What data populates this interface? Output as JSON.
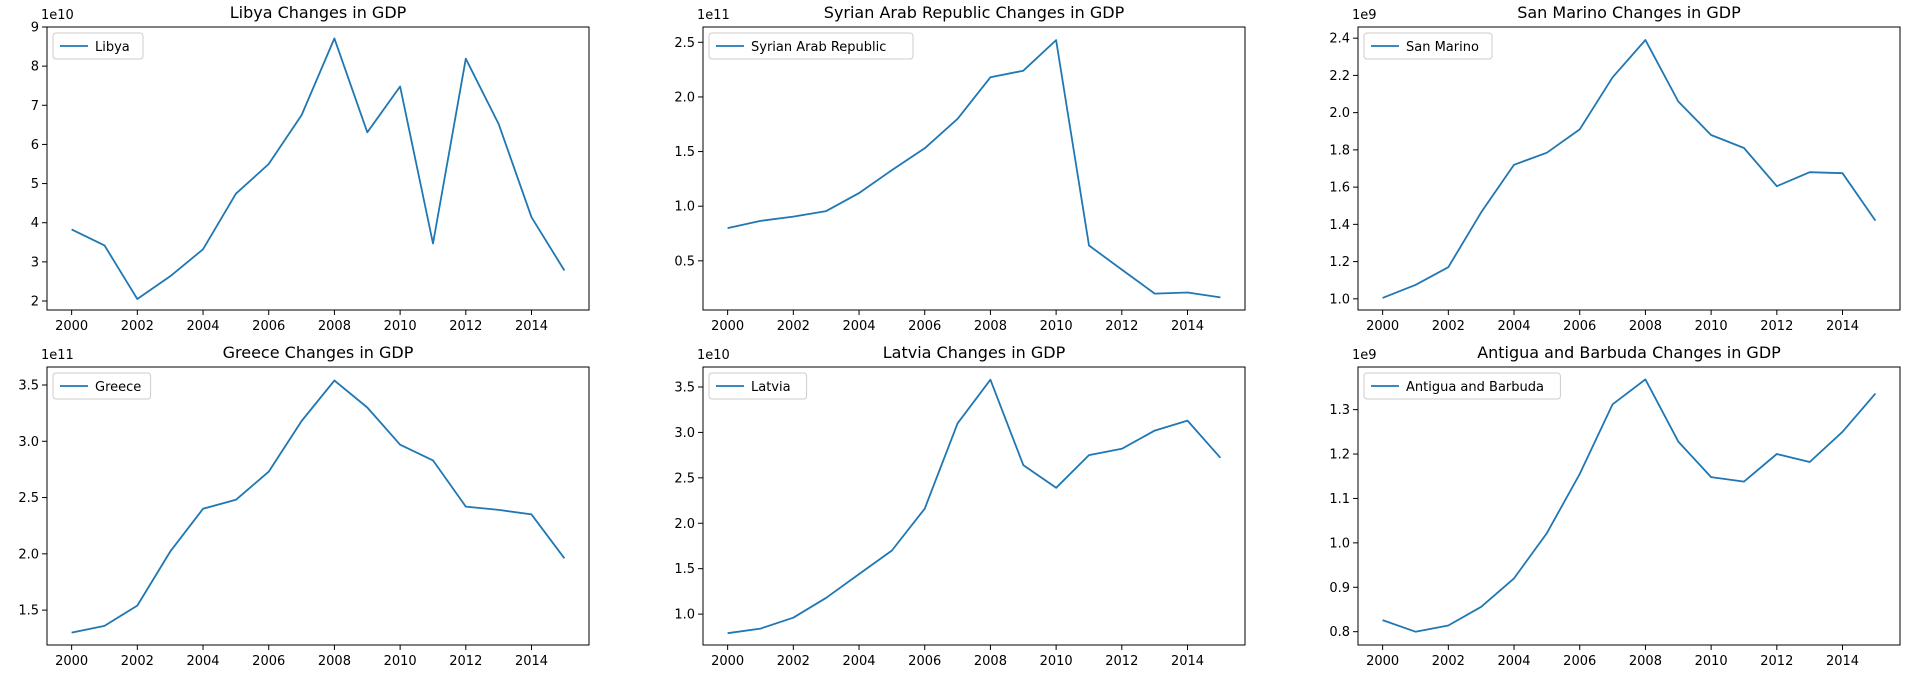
{
  "chart_data": [
    {
      "type": "line",
      "title": "Libya Changes in GDP",
      "xlabel": "",
      "ylabel": "",
      "x": [
        2000,
        2001,
        2002,
        2003,
        2004,
        2005,
        2006,
        2007,
        2008,
        2009,
        2010,
        2011,
        2012,
        2013,
        2014,
        2015
      ],
      "series": [
        {
          "name": "Libya",
          "values": [
            38300000000.0,
            34200000000.0,
            20500000000.0,
            26300000000.0,
            33200000000.0,
            47400000000.0,
            55000000000.0,
            67500000000.0,
            87100000000.0,
            63100000000.0,
            74800000000.0,
            34700000000.0,
            81900000000.0,
            65200000000.0,
            41400000000.0,
            27800000000.0
          ]
        }
      ],
      "xlim": [
        1999.25,
        2015.75
      ],
      "ylim": [
        17700000000.0,
        90000000000.0
      ],
      "xticks": [
        2000,
        2002,
        2004,
        2006,
        2008,
        2010,
        2012,
        2014
      ],
      "yticks": [
        2,
        3,
        4,
        5,
        6,
        7,
        8,
        9
      ],
      "offset_label": "1e10",
      "legend": "upper left",
      "grid": false
    },
    {
      "type": "line",
      "title": "Syrian Arab Republic Changes in GDP",
      "xlabel": "",
      "ylabel": "",
      "x": [
        2000,
        2001,
        2002,
        2003,
        2004,
        2005,
        2006,
        2007,
        2008,
        2009,
        2010,
        2011,
        2012,
        2013,
        2014,
        2015
      ],
      "series": [
        {
          "name": "Syrian Arab Republic",
          "values": [
            80000000000.0,
            86500000000.0,
            90500000000.0,
            95500000000.0,
            112000000000.0,
            133000000000.0,
            153000000000.0,
            180000000000.0,
            218000000000.0,
            224000000000.0,
            252000000000.0,
            64000000000.0,
            42000000000.0,
            20000000000.0,
            21000000000.0,
            16500000000.0
          ]
        }
      ],
      "xlim": [
        1999.25,
        2015.75
      ],
      "ylim": [
        5000000000.0,
        264000000000.0
      ],
      "xticks": [
        2000,
        2002,
        2004,
        2006,
        2008,
        2010,
        2012,
        2014
      ],
      "yticks": [
        "0.5",
        "1.0",
        "1.5",
        "2.0",
        "2.5"
      ],
      "offset_label": "1e11",
      "legend": "upper left",
      "grid": false
    },
    {
      "type": "line",
      "title": "San Marino Changes in GDP",
      "xlabel": "",
      "ylabel": "",
      "x": [
        2000,
        2001,
        2002,
        2003,
        2004,
        2005,
        2006,
        2007,
        2008,
        2009,
        2010,
        2011,
        2012,
        2013,
        2014,
        2015
      ],
      "series": [
        {
          "name": "San Marino",
          "values": [
            1005000000.0,
            1075000000.0,
            1170000000.0,
            1465000000.0,
            1720000000.0,
            1785000000.0,
            1910000000.0,
            2190000000.0,
            2390000000.0,
            2060000000.0,
            1880000000.0,
            1810000000.0,
            1605000000.0,
            1680000000.0,
            1675000000.0,
            1420000000.0
          ]
        }
      ],
      "xlim": [
        1999.25,
        2015.75
      ],
      "ylim": [
        940000000.0,
        2460000000.0
      ],
      "xticks": [
        2000,
        2002,
        2004,
        2006,
        2008,
        2010,
        2012,
        2014
      ],
      "yticks": [
        "1.0",
        "1.2",
        "1.4",
        "1.6",
        "1.8",
        "2.0",
        "2.2",
        "2.4"
      ],
      "offset_label": "1e9",
      "legend": "upper left",
      "grid": false
    },
    {
      "type": "line",
      "title": "Greece Changes in GDP",
      "xlabel": "",
      "ylabel": "",
      "x": [
        2000,
        2001,
        2002,
        2003,
        2004,
        2005,
        2006,
        2007,
        2008,
        2009,
        2010,
        2011,
        2012,
        2013,
        2014,
        2015
      ],
      "series": [
        {
          "name": "Greece",
          "values": [
            130000000000.0,
            136000000000.0,
            154000000000.0,
            202000000000.0,
            240000000000.0,
            248000000000.0,
            273000000000.0,
            318000000000.0,
            354000000000.0,
            330000000000.0,
            297000000000.0,
            283000000000.0,
            242000000000.0,
            239000000000.0,
            235000000000.0,
            196000000000.0
          ]
        }
      ],
      "xlim": [
        1999.25,
        2015.75
      ],
      "ylim": [
        119000000000.0,
        366000000000.0
      ],
      "xticks": [
        2000,
        2002,
        2004,
        2006,
        2008,
        2010,
        2012,
        2014
      ],
      "yticks": [
        "1.5",
        "2.0",
        "2.5",
        "3.0",
        "3.5"
      ],
      "offset_label": "1e11",
      "legend": "upper left",
      "grid": false
    },
    {
      "type": "line",
      "title": "Latvia Changes in GDP",
      "xlabel": "",
      "ylabel": "",
      "x": [
        2000,
        2001,
        2002,
        2003,
        2004,
        2005,
        2006,
        2007,
        2008,
        2009,
        2010,
        2011,
        2012,
        2013,
        2014,
        2015
      ],
      "series": [
        {
          "name": "Latvia",
          "values": [
            7900000000.0,
            8400000000.0,
            9600000000.0,
            11800000000.0,
            14400000000.0,
            17000000000.0,
            21600000000.0,
            31000000000.0,
            35800000000.0,
            26400000000.0,
            23900000000.0,
            27500000000.0,
            28200000000.0,
            30200000000.0,
            31300000000.0,
            27200000000.0
          ]
        }
      ],
      "xlim": [
        1999.25,
        2015.75
      ],
      "ylim": [
        6600000000.0,
        37200000000.0
      ],
      "xticks": [
        2000,
        2002,
        2004,
        2006,
        2008,
        2010,
        2012,
        2014
      ],
      "yticks": [
        "1.0",
        "1.5",
        "2.0",
        "2.5",
        "3.0",
        "3.5"
      ],
      "offset_label": "1e10",
      "legend": "upper left",
      "grid": false
    },
    {
      "type": "line",
      "title": "Antigua and Barbuda Changes in GDP",
      "xlabel": "",
      "ylabel": "",
      "x": [
        2000,
        2001,
        2002,
        2003,
        2004,
        2005,
        2006,
        2007,
        2008,
        2009,
        2010,
        2011,
        2012,
        2013,
        2014,
        2015
      ],
      "series": [
        {
          "name": "Antigua and Barbuda",
          "values": [
            826000000.0,
            800000000.0,
            814000000.0,
            856000000.0,
            920000000.0,
            1022000000.0,
            1155000000.0,
            1312000000.0,
            1368000000.0,
            1228000000.0,
            1148000000.0,
            1138000000.0,
            1200000000.0,
            1182000000.0,
            1250000000.0,
            1336000000.0
          ]
        }
      ],
      "xlim": [
        1999.25,
        2015.75
      ],
      "ylim": [
        770000000.0,
        1396000000.0
      ],
      "xticks": [
        2000,
        2002,
        2004,
        2006,
        2008,
        2010,
        2012,
        2014
      ],
      "yticks": [
        "0.8",
        "0.9",
        "1.0",
        "1.1",
        "1.2",
        "1.3"
      ],
      "offset_label": "1e9",
      "legend": "upper left",
      "grid": false
    }
  ],
  "colors": {
    "line": "#1f77b4",
    "axes": "#000000",
    "legend_border": "#cccccc"
  }
}
